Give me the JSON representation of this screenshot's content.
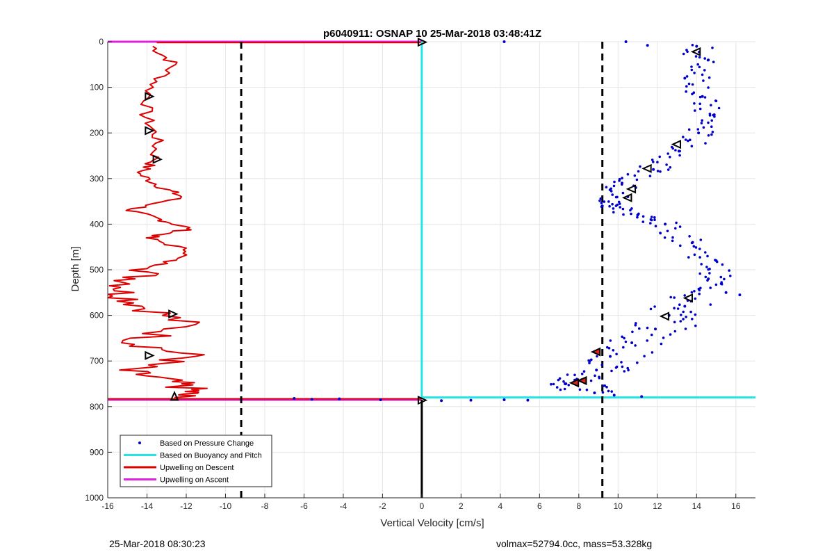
{
  "chart_data": {
    "type": "scatter",
    "title": "p6040911: OSNAP 10 25-Mar-2018 03:48:41Z",
    "xlabel": "Vertical Velocity [cm/s]",
    "ylabel": "Depth [m]",
    "xlim": [
      -16,
      17
    ],
    "ylim": [
      0,
      1000
    ],
    "y_reversed": true,
    "grid": true,
    "xticks": [
      -16,
      -14,
      -12,
      -10,
      -8,
      -6,
      -4,
      -2,
      0,
      2,
      4,
      6,
      8,
      10,
      12,
      14,
      16
    ],
    "yticks": [
      0,
      100,
      200,
      300,
      400,
      500,
      600,
      700,
      800,
      900,
      1000
    ],
    "legend_position": "bottom-left",
    "colors": {
      "pressure": "#0000cc",
      "buoyancy": "#22e6e6",
      "descent": "#dd0000",
      "ascent": "#dd22dd",
      "threshold": "#000000"
    },
    "series": [
      {
        "name": "Based on Pressure Change",
        "style": "dots",
        "points": [
          [
            14.0,
            10
          ],
          [
            14.6,
            40
          ],
          [
            13.4,
            80
          ],
          [
            14.3,
            120
          ],
          [
            14.9,
            160
          ],
          [
            14.1,
            200
          ],
          [
            13.1,
            240
          ],
          [
            11.8,
            280
          ],
          [
            10.2,
            310
          ],
          [
            9.2,
            360
          ],
          [
            11.0,
            380
          ],
          [
            12.4,
            400
          ],
          [
            13.8,
            440
          ],
          [
            15.0,
            480
          ],
          [
            14.6,
            520
          ],
          [
            15.5,
            550
          ],
          [
            13.4,
            580
          ],
          [
            12.6,
            600
          ],
          [
            11.9,
            630
          ],
          [
            10.7,
            660
          ],
          [
            9.6,
            690
          ],
          [
            8.9,
            720
          ],
          [
            7.9,
            740
          ],
          [
            7.3,
            750
          ],
          [
            8.8,
            770
          ],
          [
            4.2,
            0
          ],
          [
            10.4,
            0
          ],
          [
            11.5,
            8
          ],
          [
            10.5,
            340
          ],
          [
            10.9,
            320
          ],
          [
            16.2,
            555
          ],
          [
            9.8,
            775
          ],
          [
            11.2,
            778
          ],
          [
            1.0,
            787
          ],
          [
            2.5,
            786
          ],
          [
            4.2,
            785
          ],
          [
            5.4,
            786
          ],
          [
            -2.1,
            785
          ],
          [
            -4.2,
            783
          ],
          [
            -5.6,
            784
          ],
          [
            -6.5,
            782
          ]
        ]
      },
      {
        "name": "Based on Buoyancy and Pitch",
        "style": "line",
        "x": 0,
        "from": 0,
        "to": 780,
        "horizontal_at": 780
      },
      {
        "name": "Upwelling on Descent",
        "style": "line"
      },
      {
        "name": "Upwelling on Ascent",
        "style": "line",
        "depths": [
          0,
          785
        ]
      }
    ],
    "thresholds": [
      -9.2,
      9.2
    ],
    "zero_line_below": [
      785,
      1000
    ]
  },
  "footer": {
    "left": "25-Mar-2018 08:30:23",
    "right": "volmax=52794.0cc, mass=53.328kg"
  }
}
